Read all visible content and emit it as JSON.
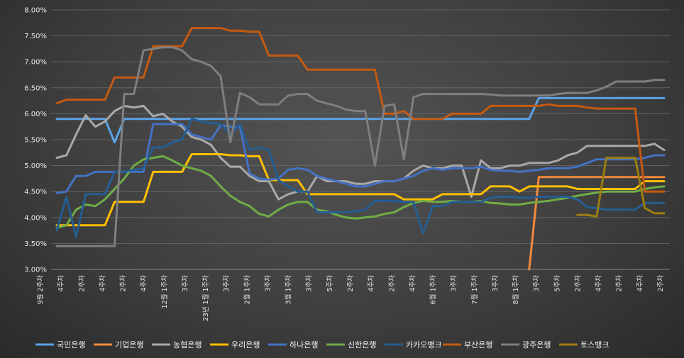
{
  "chart_data": {
    "type": "line",
    "ylim": [
      3.0,
      8.0
    ],
    "y_ticks": [
      "3.00%",
      "3.50%",
      "4.00%",
      "4.50%",
      "5.00%",
      "5.50%",
      "6.00%",
      "6.50%",
      "7.00%",
      "7.50%",
      "8.00%"
    ],
    "x_count": 64,
    "x_ticks": [
      "9월 2주차",
      "4주차",
      "2주차",
      "4주차",
      "2주차",
      "4주차",
      "12월 1주차",
      "3주차",
      "23년 1월 1주차",
      "3주차",
      "2월 1주차",
      "3주차",
      "3월 1주차",
      "3주차",
      "5주차",
      "2주차",
      "4주차",
      "2주차",
      "4주차",
      "6월 1주차",
      "3주차",
      "7월 1주차",
      "3주차",
      "8월 1주차",
      "3주차",
      "5주차",
      "2주차",
      "4주차",
      "2주차",
      "4주차",
      "2주차"
    ],
    "grid": true,
    "legend_position": "bottom",
    "series": [
      {
        "name": "국민은행",
        "color": "#5ba3e6",
        "values": [
          5.9,
          5.9,
          5.9,
          5.9,
          5.9,
          5.9,
          5.45,
          5.9,
          5.9,
          5.9,
          5.9,
          5.9,
          5.9,
          5.9,
          5.9,
          5.9,
          5.9,
          5.9,
          5.9,
          5.9,
          5.9,
          5.9,
          5.9,
          5.9,
          5.9,
          5.9,
          5.9,
          5.9,
          5.9,
          5.9,
          5.9,
          5.9,
          5.9,
          5.9,
          5.9,
          5.9,
          5.9,
          5.9,
          5.9,
          5.9,
          5.9,
          5.9,
          5.9,
          5.9,
          5.9,
          5.9,
          5.9,
          5.9,
          5.9,
          5.9,
          6.3,
          6.3,
          6.3,
          6.3,
          6.3,
          6.3,
          6.3,
          6.3,
          6.3,
          6.3,
          6.3,
          6.3,
          6.3,
          6.3
        ]
      },
      {
        "name": "기업은행",
        "color": "#f08a3c",
        "values": [
          null,
          null,
          null,
          null,
          null,
          null,
          null,
          null,
          null,
          null,
          null,
          null,
          null,
          null,
          null,
          null,
          null,
          null,
          null,
          null,
          null,
          null,
          null,
          null,
          null,
          null,
          null,
          null,
          null,
          null,
          null,
          null,
          null,
          null,
          null,
          null,
          null,
          null,
          null,
          null,
          null,
          null,
          null,
          null,
          null,
          null,
          null,
          null,
          null,
          3.0,
          4.78,
          4.78,
          4.78,
          4.78,
          4.78,
          4.78,
          4.78,
          4.78,
          4.78,
          4.78,
          4.78,
          4.78,
          4.78,
          4.78
        ]
      },
      {
        "name": "농협은행",
        "color": "#a9a9a9",
        "values": [
          5.15,
          5.2,
          5.6,
          5.97,
          5.75,
          5.85,
          6.05,
          6.15,
          6.12,
          6.15,
          5.95,
          6.0,
          5.85,
          5.75,
          5.55,
          5.5,
          5.4,
          5.15,
          4.98,
          4.98,
          4.8,
          4.7,
          4.7,
          4.35,
          4.45,
          4.5,
          4.5,
          4.8,
          4.7,
          4.7,
          4.7,
          4.65,
          4.65,
          4.7,
          4.7,
          4.7,
          4.75,
          4.9,
          5.0,
          4.95,
          4.95,
          5.0,
          5.0,
          4.4,
          5.1,
          4.95,
          4.95,
          5.0,
          5.0,
          5.05,
          5.05,
          5.05,
          5.1,
          5.2,
          5.25,
          5.38,
          5.38,
          5.38,
          5.38,
          5.38,
          5.38,
          5.38,
          5.42,
          5.3
        ]
      },
      {
        "name": "우리은행",
        "color": "#ffc000",
        "values": [
          3.85,
          3.85,
          3.85,
          3.85,
          3.85,
          3.85,
          4.3,
          4.3,
          4.3,
          4.3,
          4.88,
          4.88,
          4.88,
          4.88,
          5.22,
          5.22,
          5.22,
          5.22,
          5.2,
          5.2,
          5.18,
          5.18,
          4.72,
          4.72,
          4.72,
          4.72,
          4.45,
          4.45,
          4.45,
          4.45,
          4.45,
          4.45,
          4.45,
          4.45,
          4.45,
          4.45,
          4.35,
          4.35,
          4.35,
          4.35,
          4.45,
          4.45,
          4.45,
          4.45,
          4.45,
          4.6,
          4.6,
          4.6,
          4.5,
          4.6,
          4.6,
          4.6,
          4.6,
          4.6,
          4.55,
          4.55,
          4.55,
          4.55,
          4.55,
          4.55,
          4.55,
          4.7,
          4.7,
          4.7
        ]
      },
      {
        "name": "하나은행",
        "color": "#4472c4",
        "values": [
          4.47,
          4.5,
          4.8,
          4.8,
          4.88,
          4.88,
          4.88,
          4.88,
          4.88,
          4.88,
          5.8,
          5.8,
          5.8,
          5.8,
          5.6,
          5.55,
          5.5,
          5.78,
          5.75,
          5.75,
          4.85,
          4.75,
          4.73,
          4.75,
          4.92,
          4.95,
          4.92,
          4.8,
          4.75,
          4.7,
          4.65,
          4.6,
          4.6,
          4.65,
          4.7,
          4.7,
          4.75,
          4.8,
          4.9,
          4.95,
          4.92,
          4.95,
          4.95,
          4.95,
          4.98,
          4.92,
          4.9,
          4.9,
          4.88,
          4.9,
          4.92,
          4.95,
          4.95,
          4.95,
          4.98,
          5.05,
          5.12,
          5.12,
          5.12,
          5.12,
          5.12,
          5.15,
          5.2,
          5.2
        ]
      },
      {
        "name": "신한은행",
        "color": "#70ad47",
        "values": [
          3.8,
          3.85,
          4.15,
          4.25,
          4.22,
          4.35,
          4.55,
          4.75,
          5.0,
          5.12,
          5.15,
          5.18,
          5.1,
          5.0,
          4.95,
          4.9,
          4.8,
          4.6,
          4.42,
          4.3,
          4.22,
          4.07,
          4.02,
          4.15,
          4.25,
          4.3,
          4.3,
          4.15,
          4.12,
          4.05,
          4.0,
          3.98,
          4.0,
          4.02,
          4.07,
          4.1,
          4.2,
          4.28,
          4.32,
          4.3,
          4.3,
          4.32,
          4.3,
          4.3,
          4.32,
          4.28,
          4.27,
          4.25,
          4.25,
          4.28,
          4.3,
          4.32,
          4.35,
          4.38,
          4.42,
          4.45,
          4.48,
          4.5,
          4.5,
          4.5,
          4.5,
          4.55,
          4.58,
          4.6
        ]
      },
      {
        "name": "카카오뱅크",
        "color": "#255e91",
        "values": [
          3.75,
          4.4,
          3.62,
          4.45,
          4.45,
          4.45,
          4.88,
          4.88,
          4.92,
          4.95,
          5.35,
          5.35,
          5.45,
          5.5,
          5.9,
          5.85,
          5.82,
          5.8,
          5.6,
          5.8,
          5.3,
          5.35,
          5.3,
          4.72,
          4.6,
          4.5,
          4.5,
          4.1,
          4.1,
          4.1,
          4.1,
          4.12,
          4.15,
          4.32,
          4.32,
          4.32,
          4.3,
          4.3,
          3.7,
          4.22,
          4.22,
          4.3,
          4.3,
          4.3,
          4.3,
          4.38,
          4.4,
          4.4,
          4.38,
          4.38,
          4.4,
          4.4,
          4.4,
          4.4,
          4.35,
          4.2,
          4.18,
          4.15,
          4.15,
          4.15,
          4.15,
          4.28,
          4.28,
          4.28
        ]
      },
      {
        "name": "부산은행",
        "color": "#c55a11",
        "values": [
          6.2,
          6.27,
          6.27,
          6.27,
          6.27,
          6.27,
          6.7,
          6.7,
          6.7,
          6.7,
          7.3,
          7.3,
          7.3,
          7.3,
          7.65,
          7.65,
          7.65,
          7.65,
          7.6,
          7.6,
          7.58,
          7.58,
          7.12,
          7.12,
          7.12,
          7.12,
          6.85,
          6.85,
          6.85,
          6.85,
          6.85,
          6.85,
          6.85,
          6.85,
          6.0,
          6.0,
          6.05,
          5.9,
          5.9,
          5.9,
          5.9,
          6.0,
          6.0,
          6.0,
          6.0,
          6.15,
          6.15,
          6.15,
          6.15,
          6.15,
          6.15,
          6.18,
          6.15,
          6.15,
          6.15,
          6.12,
          6.1,
          6.1,
          6.1,
          6.1,
          6.1,
          4.5,
          4.5,
          4.5
        ]
      },
      {
        "name": "광주은행",
        "color": "#7f7f7f",
        "values": [
          3.45,
          3.45,
          3.45,
          3.45,
          3.45,
          3.45,
          3.45,
          6.38,
          6.38,
          7.22,
          7.25,
          7.28,
          7.28,
          7.22,
          7.05,
          7.0,
          6.92,
          6.72,
          5.45,
          6.4,
          6.32,
          6.18,
          6.18,
          6.18,
          6.35,
          6.38,
          6.38,
          6.25,
          6.2,
          6.15,
          6.08,
          6.05,
          6.05,
          5.0,
          6.15,
          6.18,
          5.12,
          6.32,
          6.38,
          6.38,
          6.38,
          6.38,
          6.38,
          6.38,
          6.38,
          6.37,
          6.35,
          6.35,
          6.35,
          6.35,
          6.35,
          6.35,
          6.38,
          6.4,
          6.4,
          6.4,
          6.45,
          6.52,
          6.62,
          6.62,
          6.62,
          6.62,
          6.65,
          6.65
        ]
      },
      {
        "name": "토스뱅크",
        "color": "#9c7e0f",
        "values": [
          null,
          null,
          null,
          null,
          null,
          null,
          null,
          null,
          null,
          null,
          null,
          null,
          null,
          null,
          null,
          null,
          null,
          null,
          null,
          null,
          null,
          null,
          null,
          null,
          null,
          null,
          null,
          null,
          null,
          null,
          null,
          null,
          null,
          null,
          null,
          null,
          null,
          null,
          null,
          null,
          null,
          null,
          null,
          null,
          null,
          null,
          null,
          null,
          null,
          null,
          null,
          null,
          null,
          null,
          4.05,
          4.05,
          4.02,
          5.15,
          5.15,
          5.15,
          5.15,
          4.18,
          4.08,
          4.08
        ]
      }
    ]
  }
}
